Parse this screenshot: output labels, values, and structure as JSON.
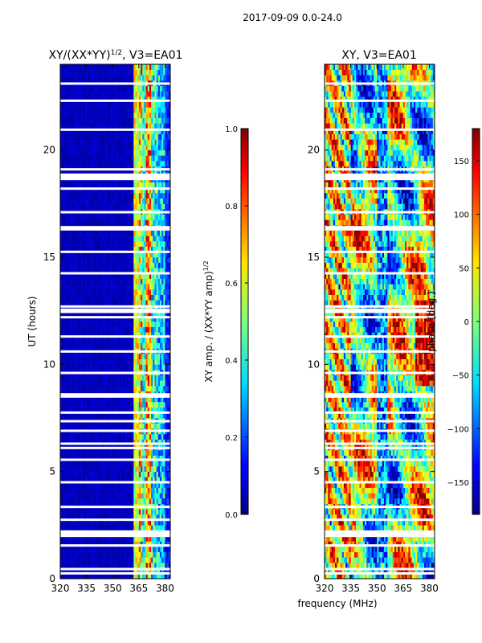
{
  "figure": {
    "suptitle": "2017-09-09 0.0-24.0",
    "xlabel": "frequency (MHz)"
  },
  "chart_data": [
    {
      "type": "heatmap",
      "title": "XY/(XX*YY)",
      "title_superscript": "1/2",
      "title_suffix": ", V3=EA01",
      "xlabel": "",
      "ylabel": "UT (hours)",
      "xlim": [
        320,
        383
      ],
      "ylim": [
        0,
        24
      ],
      "xticks": [
        "320",
        "335",
        "350",
        "365",
        "380"
      ],
      "xtick_values": [
        320,
        335,
        350,
        365,
        380
      ],
      "yticks": [
        "0",
        "5",
        "10",
        "15",
        "20"
      ],
      "ytick_values": [
        0,
        5,
        10,
        15,
        20
      ],
      "grid": false,
      "colorbar": {
        "label": "XY amp. / (XX*YY amp)",
        "label_superscript": "1/2",
        "ticks": [
          "0.0",
          "0.2",
          "0.4",
          "0.6",
          "0.8",
          "1.0"
        ],
        "tick_values": [
          0.0,
          0.2,
          0.4,
          0.6,
          0.8,
          1.0
        ],
        "range": [
          0.0,
          1.0
        ],
        "colormap": "jet"
      }
    },
    {
      "type": "heatmap",
      "title": "XY, V3=EA01",
      "xlabel": "",
      "ylabel": "",
      "xlim": [
        320,
        383
      ],
      "ylim": [
        0,
        24
      ],
      "xticks": [
        "320",
        "335",
        "350",
        "365",
        "380"
      ],
      "xtick_values": [
        320,
        335,
        350,
        365,
        380
      ],
      "yticks": [
        "0",
        "5",
        "10",
        "15",
        "20"
      ],
      "ytick_values": [
        0,
        5,
        10,
        15,
        20
      ],
      "grid": false,
      "colorbar": {
        "label": "phase (deg.)",
        "ticks": [
          "−150",
          "−100",
          "−50",
          "0",
          "50",
          "100",
          "150"
        ],
        "tick_values": [
          -150,
          -100,
          -50,
          0,
          50,
          100,
          150
        ],
        "range": [
          -180,
          180
        ],
        "colormap": "jet"
      }
    }
  ],
  "gaps_hours": [
    0.25,
    0.45,
    1.55,
    2.0,
    2.1,
    2.2,
    2.75,
    3.35,
    4.5,
    5.55,
    6.1,
    6.3,
    6.9,
    7.35,
    7.75,
    8.5,
    8.6,
    9.6,
    10.6,
    11.3,
    12.2,
    12.45,
    12.55,
    12.7,
    14.25,
    15.25,
    16.3,
    16.4,
    17.1,
    18.2,
    18.65,
    18.75,
    18.85,
    19.1,
    20.95,
    22.3,
    23.1
  ]
}
